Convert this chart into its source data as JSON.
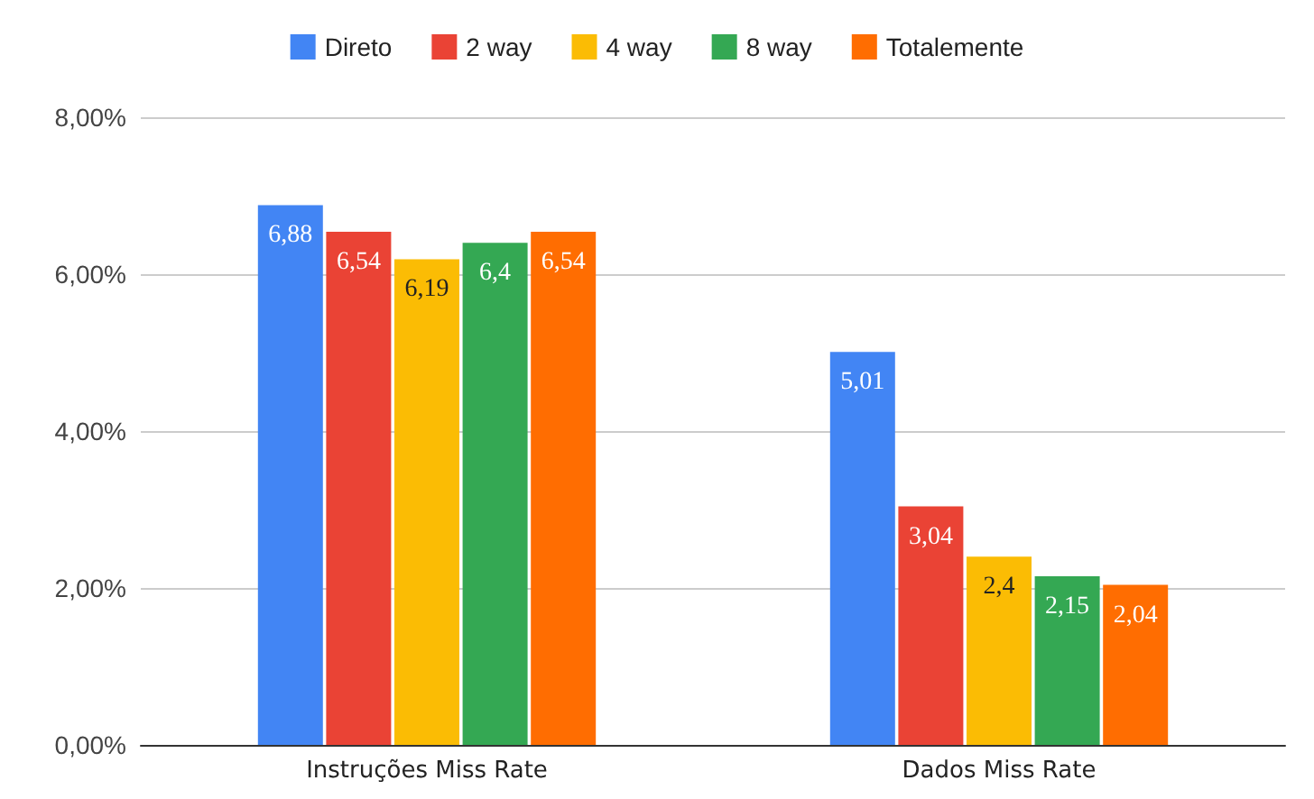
{
  "chart_data": {
    "type": "bar",
    "categories": [
      "Instruções Miss Rate",
      "Dados Miss Rate"
    ],
    "series": [
      {
        "name": "Direto",
        "color": "#4285f4",
        "values": [
          6.88,
          5.01
        ],
        "value_labels": [
          "6,88",
          "5,01"
        ]
      },
      {
        "name": "2 way",
        "color": "#ea4335",
        "values": [
          6.54,
          3.04
        ],
        "value_labels": [
          "6,54",
          "3,04"
        ]
      },
      {
        "name": "4 way",
        "color": "#fbbc04",
        "values": [
          6.19,
          2.4
        ],
        "value_labels": [
          "6,19",
          "2,4"
        ]
      },
      {
        "name": "8 way",
        "color": "#34a853",
        "values": [
          6.4,
          2.15
        ],
        "value_labels": [
          "6,4",
          "2,15"
        ]
      },
      {
        "name": "Totalemente",
        "color": "#ff6d01",
        "values": [
          6.54,
          2.04
        ],
        "value_labels": [
          "6,54",
          "2,04"
        ]
      }
    ],
    "ylim": [
      0,
      8
    ],
    "yticks": [
      {
        "value": 0,
        "label": "0,00%"
      },
      {
        "value": 2,
        "label": "2,00%"
      },
      {
        "value": 4,
        "label": "4,00%"
      },
      {
        "value": 6,
        "label": "6,00%"
      },
      {
        "value": 8,
        "label": "8,00%"
      }
    ],
    "grid": "y",
    "legend": "top"
  }
}
